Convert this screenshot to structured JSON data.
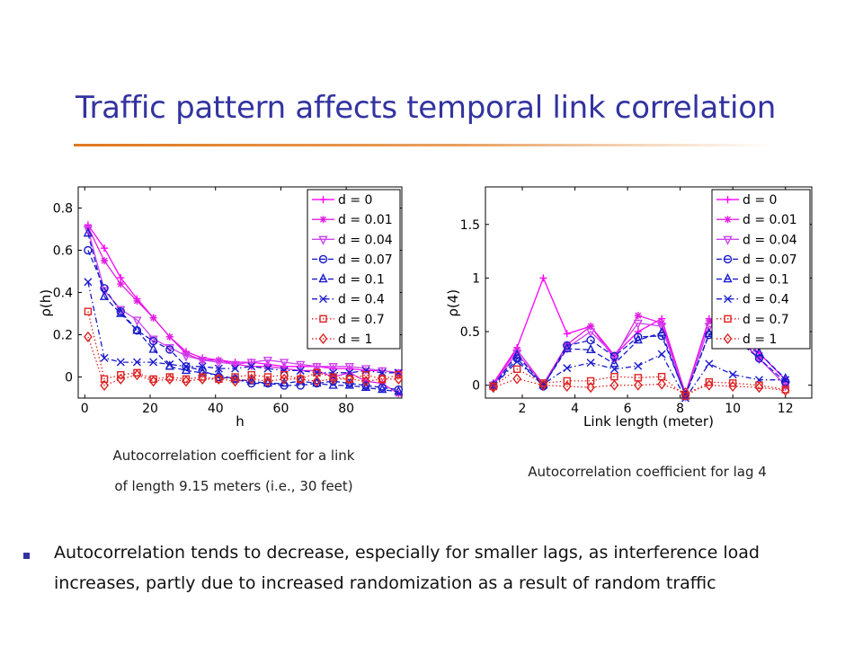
{
  "slide": {
    "title": "Traffic pattern affects temporal link correlation",
    "caption_left_line1": "Autocorrelation coefficient for a link",
    "caption_left_line2": "of length 9.15 meters (i.e., 30 feet)",
    "caption_right": "Autocorrelation coefficient for lag 4",
    "bullet": "Autocorrelation tends to decrease, especially for smaller lags, as interference load increases, partly due to increased randomization as a result of random traffic",
    "colors": {
      "title": "#3333a0",
      "rule": "#e07820",
      "bullet_marker": "#3333a0"
    }
  },
  "chart_data": [
    {
      "type": "line",
      "xlabel": "h",
      "ylabel": "ρ(h)",
      "xlim": [
        -2,
        97
      ],
      "ylim": [
        -0.1,
        0.9
      ],
      "xticks": [
        0,
        20,
        40,
        60,
        80
      ],
      "yticks": [
        0,
        0.2,
        0.4,
        0.6,
        0.8
      ],
      "xtick_labels": [
        "0",
        "20",
        "40",
        "60",
        "80"
      ],
      "ytick_labels": [
        "0",
        "0.2",
        "0.4",
        "0.6",
        "0.8"
      ],
      "legend_position": "top-right",
      "x": [
        1,
        6,
        11,
        16,
        21,
        26,
        31,
        36,
        41,
        46,
        51,
        56,
        61,
        66,
        71,
        76,
        81,
        86,
        91,
        96
      ],
      "series": [
        {
          "name": "d = 0",
          "color": "#ff00ff",
          "dash": "solid",
          "marker": "plus",
          "values": [
            0.72,
            0.61,
            0.47,
            0.37,
            0.28,
            0.19,
            0.12,
            0.09,
            0.08,
            0.07,
            0.07,
            0.06,
            0.05,
            0.05,
            0.05,
            0.04,
            0.04,
            0.03,
            0.03,
            0.02
          ]
        },
        {
          "name": "d = 0.01",
          "color": "#e020e0",
          "dash": "solid",
          "marker": "star",
          "values": [
            0.71,
            0.55,
            0.44,
            0.36,
            0.28,
            0.19,
            0.11,
            0.08,
            0.08,
            0.06,
            0.05,
            0.05,
            0.04,
            0.03,
            0.03,
            0.0,
            0.02,
            -0.02,
            -0.03,
            -0.08
          ]
        },
        {
          "name": "d = 0.04",
          "color": "#cc44ee",
          "dash": "solid",
          "marker": "triangle-down",
          "values": [
            0.7,
            0.41,
            0.32,
            0.27,
            0.18,
            0.14,
            0.1,
            0.08,
            0.07,
            0.06,
            0.07,
            0.08,
            0.07,
            0.06,
            0.05,
            0.05,
            0.05,
            0.04,
            0.03,
            0.02
          ]
        },
        {
          "name": "d = 0.07",
          "color": "#1a1acc",
          "dash": "dash",
          "marker": "circle",
          "values": [
            0.6,
            0.42,
            0.31,
            0.22,
            0.17,
            0.13,
            0.05,
            0.03,
            0.0,
            -0.01,
            -0.03,
            -0.03,
            -0.04,
            -0.04,
            -0.03,
            -0.02,
            -0.03,
            -0.04,
            -0.05,
            -0.06
          ]
        },
        {
          "name": "d = 0.1",
          "color": "#1a1acc",
          "dash": "dash",
          "marker": "triangle-up",
          "values": [
            0.68,
            0.38,
            0.3,
            0.22,
            0.13,
            0.05,
            0.03,
            0.02,
            0.01,
            -0.01,
            -0.02,
            -0.03,
            -0.03,
            -0.02,
            -0.03,
            -0.04,
            -0.04,
            -0.05,
            -0.06,
            -0.07
          ]
        },
        {
          "name": "d = 0.4",
          "color": "#1a1acc",
          "dash": "dashdot",
          "marker": "x",
          "values": [
            0.45,
            0.09,
            0.07,
            0.07,
            0.07,
            0.06,
            0.05,
            0.05,
            0.04,
            0.04,
            0.05,
            0.04,
            0.03,
            0.03,
            0.02,
            0.02,
            0.02,
            0.03,
            0.02,
            0.02
          ]
        },
        {
          "name": "d = 0.7",
          "color": "#dd2222",
          "dash": "dot",
          "marker": "square",
          "values": [
            0.31,
            -0.01,
            0.01,
            0.02,
            -0.01,
            0.0,
            -0.01,
            0.0,
            -0.01,
            0.0,
            0.01,
            0.0,
            0.01,
            -0.01,
            0.02,
            0.0,
            -0.01,
            0.01,
            -0.01,
            0.01
          ]
        },
        {
          "name": "d = 1",
          "color": "#dd2222",
          "dash": "dot",
          "marker": "diamond",
          "values": [
            0.19,
            -0.04,
            -0.01,
            0.01,
            -0.02,
            -0.01,
            -0.02,
            -0.01,
            -0.01,
            -0.02,
            -0.01,
            -0.02,
            -0.01,
            -0.01,
            -0.02,
            -0.01,
            -0.01,
            -0.02,
            -0.01,
            -0.01
          ]
        }
      ]
    },
    {
      "type": "line",
      "xlabel": "Link length (meter)",
      "ylabel": "ρ(4)",
      "xlim": [
        0.6,
        13.0
      ],
      "ylim": [
        -0.12,
        1.85
      ],
      "xticks": [
        2,
        4,
        6,
        8,
        10,
        12
      ],
      "yticks": [
        0,
        0.5,
        1,
        1.5
      ],
      "xtick_labels": [
        "2",
        "4",
        "6",
        "8",
        "10",
        "12"
      ],
      "ytick_labels": [
        "0",
        "0.5",
        "1",
        "1.5"
      ],
      "legend_position": "top-right",
      "x": [
        0.9,
        1.8,
        2.8,
        3.7,
        4.6,
        5.5,
        6.4,
        7.3,
        8.2,
        9.1,
        10.0,
        11.0,
        12.0
      ],
      "series": [
        {
          "name": "d = 0",
          "color": "#ff00ff",
          "dash": "solid",
          "marker": "plus",
          "values": [
            0.02,
            0.35,
            1.0,
            0.48,
            0.55,
            0.28,
            0.5,
            0.62,
            -0.08,
            0.62,
            0.5,
            0.3,
            0.05
          ]
        },
        {
          "name": "d = 0.01",
          "color": "#e020e0",
          "dash": "solid",
          "marker": "star",
          "values": [
            0.01,
            0.33,
            0.01,
            0.38,
            0.55,
            0.25,
            0.65,
            0.58,
            -0.08,
            0.6,
            0.5,
            0.25,
            0.0
          ]
        },
        {
          "name": "d = 0.04",
          "color": "#cc44ee",
          "dash": "solid",
          "marker": "triangle-down",
          "values": [
            0.0,
            0.3,
            0.0,
            0.35,
            0.5,
            0.28,
            0.58,
            0.55,
            -0.1,
            0.55,
            0.48,
            0.25,
            0.0
          ]
        },
        {
          "name": "d = 0.07",
          "color": "#1a1acc",
          "dash": "dash",
          "marker": "circle",
          "values": [
            -0.01,
            0.25,
            -0.01,
            0.37,
            0.42,
            0.27,
            0.45,
            0.46,
            -0.09,
            0.47,
            0.45,
            0.25,
            0.03
          ]
        },
        {
          "name": "d = 0.1",
          "color": "#1a1acc",
          "dash": "dash",
          "marker": "triangle-up",
          "values": [
            0.0,
            0.28,
            0.0,
            0.34,
            0.33,
            0.2,
            0.42,
            0.49,
            -0.1,
            0.48,
            0.42,
            0.3,
            0.06
          ]
        },
        {
          "name": "d = 0.4",
          "color": "#1a1acc",
          "dash": "dashdot",
          "marker": "x",
          "values": [
            -0.01,
            0.22,
            0.01,
            0.16,
            0.21,
            0.15,
            0.18,
            0.29,
            -0.12,
            0.2,
            0.1,
            0.05,
            0.05
          ]
        },
        {
          "name": "d = 0.7",
          "color": "#dd2222",
          "dash": "dot",
          "marker": "square",
          "values": [
            -0.01,
            0.15,
            0.02,
            0.04,
            0.04,
            0.08,
            0.07,
            0.08,
            -0.1,
            0.03,
            0.02,
            0.0,
            -0.04
          ]
        },
        {
          "name": "d = 1",
          "color": "#dd2222",
          "dash": "dot",
          "marker": "diamond",
          "values": [
            -0.02,
            0.06,
            0.0,
            -0.01,
            -0.02,
            0.0,
            0.0,
            0.01,
            -0.07,
            0.0,
            -0.01,
            -0.02,
            -0.05
          ]
        }
      ]
    }
  ]
}
